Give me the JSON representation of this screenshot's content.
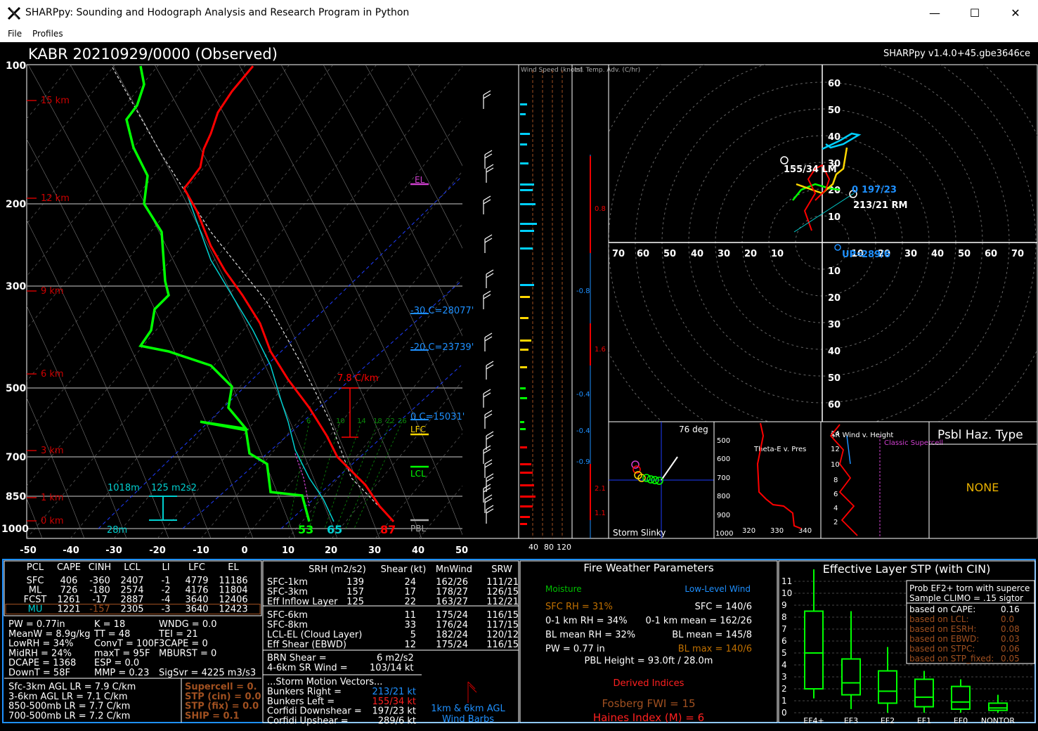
{
  "window": {
    "title": "SHARPpy: Sounding and Hodograph Analysis and Research Program in Python",
    "minimize": "—",
    "maximize": "☐",
    "close": "✕"
  },
  "menu": {
    "file": "File",
    "profiles": "Profiles"
  },
  "header": {
    "station_title": "KABR   20210929/0000  (Observed)",
    "version": "SHARPpy v1.4.0+45.gbe3646ce"
  },
  "skewt": {
    "pressure_labels": [
      "100",
      "200",
      "300",
      "500",
      "700",
      "850",
      "1000"
    ],
    "height_labels": [
      "15 km",
      "12 km",
      "9 km",
      "6 km",
      "3 km",
      "1 km",
      "0 km"
    ],
    "temp_labels": [
      "-50",
      "-40",
      "-30",
      "-20",
      "-10",
      "0",
      "10",
      "20",
      "30",
      "40",
      "50"
    ],
    "el_label": "EL",
    "lfc_label": "LFC",
    "lcl_label": "LCL",
    "pbl_label": "PBL",
    "iso30": "-30 C=28077'",
    "iso20": "-20 C=23739'",
    "iso0": "0 C=15031'",
    "lapse_label": "7.8 C/km",
    "eff_inflow_base": "1018m",
    "eff_inflow_srh": "125 m2s2",
    "eff_inflow_bottom": "28m",
    "sfc_td": "53",
    "sfc_wb": "65",
    "sfc_t": "87",
    "mix_ratios": [
      "6",
      "10",
      "14",
      "18",
      "22",
      "26"
    ]
  },
  "wind_speed_panel": {
    "title": "Wind Speed (knots)",
    "axis": [
      "40",
      "80",
      "120"
    ]
  },
  "inf_temp_panel": {
    "title": "Inf. Temp. Adv. (C/hr)",
    "values": [
      "0.8",
      "-0.8",
      "1.6",
      "-0.4",
      "-0.4",
      "-0.9",
      "2.1",
      "1.1"
    ]
  },
  "hodograph": {
    "rings": [
      "10",
      "20",
      "30",
      "40",
      "50",
      "60",
      "70"
    ],
    "x_labels": [
      "70",
      "60",
      "50",
      "40",
      "30",
      "20",
      "10",
      "10",
      "20",
      "30",
      "40",
      "50",
      "60",
      "70"
    ],
    "y_up": [
      "60",
      "50",
      "40",
      "30",
      "20",
      "10"
    ],
    "y_down": [
      "10",
      "20",
      "30",
      "40",
      "50",
      "60"
    ],
    "lm": "155/34 LM",
    "rm": "213/21 RM",
    "mean": "197/23",
    "mean_prefix": "0",
    "upshear": "289/6",
    "upshear_prefix": "UP="
  },
  "storm_slinky": {
    "angle": "76 deg",
    "label": "Storm Slinky"
  },
  "theta_e": {
    "title": "Theta-E v. Pres",
    "pres": [
      "500",
      "600",
      "700",
      "800",
      "900",
      "1000"
    ],
    "theta": [
      "320",
      "330",
      "340"
    ],
    "pres_low": "10"
  },
  "srwind": {
    "title": "SR Wind v. Height",
    "classic": "Classic Supercell",
    "heights": [
      "14",
      "12",
      "10",
      "8",
      "6",
      "4",
      "2"
    ]
  },
  "hazard": {
    "title": "Psbl Haz. Type",
    "value": "NONE"
  },
  "parcels": {
    "headers": [
      "PCL",
      "CAPE",
      "CINH",
      "LCL",
      "LI",
      "LFC",
      "EL"
    ],
    "rows": [
      [
        "SFC",
        "406",
        "-360",
        "2407",
        "-1",
        "4779",
        "11186"
      ],
      [
        "ML",
        "726",
        "-180",
        "2574",
        "-2",
        "4176",
        "11804"
      ],
      [
        "FCST",
        "1261",
        "-17",
        "2887",
        "-4",
        "3640",
        "12406"
      ],
      [
        "MU",
        "1221",
        "-157",
        "2305",
        "-3",
        "3640",
        "12423"
      ]
    ]
  },
  "thermo_indices": [
    [
      "PW = 0.77in",
      "K = 18",
      "WNDG = 0.0"
    ],
    [
      "MeanW = 8.9g/kg",
      "TT = 48",
      "TEI = 21"
    ],
    [
      "LowRH = 34%",
      "ConvT = 100F",
      "3CAPE = 0"
    ],
    [
      "MidRH = 24%",
      "maxT = 95F",
      "MBURST = 0"
    ],
    [
      "DCAPE = 1368",
      "ESP = 0.0",
      ""
    ],
    [
      "DownT = 58F",
      "MMP = 0.23",
      "SigSvr = 4225 m3/s3"
    ]
  ],
  "lapse_rates": [
    "Sfc-3km AGL LR = 7.9 C/km",
    "3-6km AGL LR = 7.1 C/km",
    "850-500mb LR = 7.7 C/km",
    "700-500mb LR = 7.2 C/km"
  ],
  "composites": [
    "Supercell = 0.",
    "STP (cin) = 0.0",
    "STP (fix) = 0.0",
    "SHIP = 0.1"
  ],
  "kinematics": {
    "headers": [
      "SRH (m2/s2)",
      "Shear (kt)",
      "MnWind",
      "SRW"
    ],
    "rows": [
      [
        "SFC-1km",
        "139",
        "24",
        "162/26",
        "111/21"
      ],
      [
        "SFC-3km",
        "157",
        "17",
        "178/27",
        "126/15"
      ],
      [
        "Eff Inflow Layer",
        "125",
        "22",
        "163/27",
        "112/21"
      ],
      [
        "SFC-6km",
        "",
        "11",
        "175/24",
        "116/15"
      ],
      [
        "SFC-8km",
        "",
        "33",
        "176/24",
        "117/15"
      ],
      [
        "LCL-EL (Cloud Layer)",
        "",
        "5",
        "182/24",
        "120/12"
      ],
      [
        "Eff Shear (EBWD)",
        "",
        "12",
        "175/24",
        "116/15"
      ]
    ],
    "brn_label": "BRN Shear =",
    "brn_value": "6 m2/s2",
    "sr46_label": "4-6km SR Wind =",
    "sr46_value": "103/14 kt",
    "storm_vectors_title": "...Storm Motion Vectors...",
    "vectors": [
      [
        "Bunkers Right =",
        "213/21 kt"
      ],
      [
        "Bunkers Left =",
        "155/34 kt"
      ],
      [
        "Corfidi Downshear =",
        "197/23 kt"
      ],
      [
        "Corfidi Upshear =",
        "289/6 kt"
      ]
    ],
    "barbs_label": "1km & 6km AGL Wind Barbs"
  },
  "fire": {
    "title": "Fire Weather Parameters",
    "moisture": "Moisture",
    "llwind": "Low-Level Wind",
    "sfc_rh": "SFC RH = 31%",
    "rh01": "0-1 km RH = 34%",
    "bl_rh": "BL mean RH = 32%",
    "pw": "PW = 0.77 in",
    "sfc_wind": "SFC = 140/6",
    "mean01": "0-1 km mean = 162/26",
    "bl_mean": "BL mean = 145/8",
    "bl_max": "BL max = 140/6",
    "pbl_height": "PBL Height = 93.0ft / 28.0m",
    "derived": "Derived Indices",
    "fosberg": "Fosberg FWI = 15",
    "haines": "Haines Index (M) = 6"
  },
  "stp": {
    "title": "Effective Layer STP (with CIN)",
    "y_labels": [
      "11",
      "10",
      "9",
      "8",
      "7",
      "6",
      "5",
      "4",
      "3",
      "2",
      "1",
      "0"
    ],
    "categories": [
      "EF4+",
      "EF3",
      "EF2",
      "EF1",
      "EF0",
      "NONTOR"
    ],
    "prob_title": "Prob EF2+ torn with superce",
    "climo": "Sample CLIMO = .15 sigtor",
    "rows": [
      [
        "based on CAPE:",
        "0.16"
      ],
      [
        "based on LCL:",
        "0.0"
      ],
      [
        "based on ESRH:",
        "0.08"
      ],
      [
        "based on EBWD:",
        "0.03"
      ],
      [
        "based on STPC:",
        "0.06"
      ],
      [
        "based on STP_fixed:",
        "0.05"
      ]
    ]
  },
  "colors": {
    "temp": "#ff0000",
    "dewp": "#00ff00",
    "wetbulb": "#00ffff",
    "accent": "#1e90ff"
  }
}
